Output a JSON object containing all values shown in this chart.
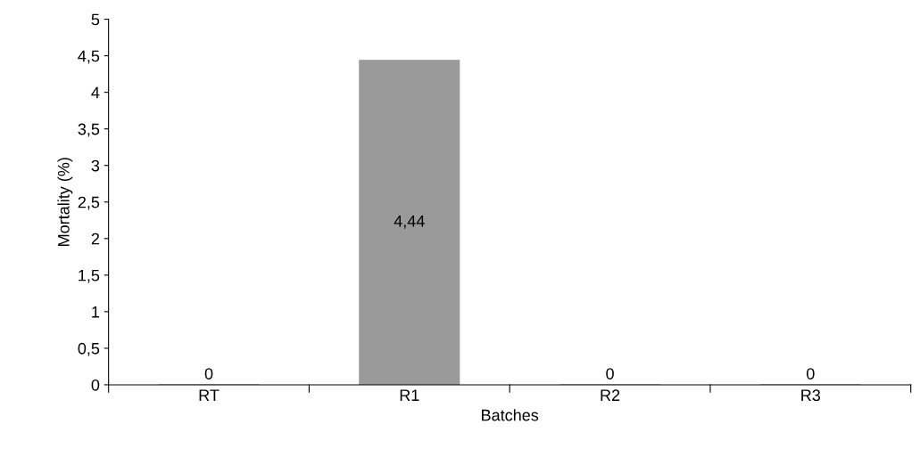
{
  "chart_data": {
    "type": "bar",
    "xlabel": "Batches",
    "ylabel": "Mortality (%)",
    "categories": [
      "RT",
      "R1",
      "R2",
      "R3"
    ],
    "values": [
      0,
      4.44,
      0,
      0
    ],
    "value_labels": [
      "0",
      "4,44",
      "0",
      "0"
    ],
    "color": "#9a9a9a",
    "ylim": [
      0,
      5
    ],
    "yticks": [
      0,
      {
        "value": 0.5,
        "label": "0,5"
      },
      1,
      {
        "value": 1.5,
        "label": "1,5"
      },
      2,
      {
        "value": 2.5,
        "label": "2,5"
      },
      3,
      {
        "value": 3.5,
        "label": "3,5"
      },
      4,
      {
        "value": 4.5,
        "label": "4,5"
      },
      5
    ],
    "grid": false
  }
}
